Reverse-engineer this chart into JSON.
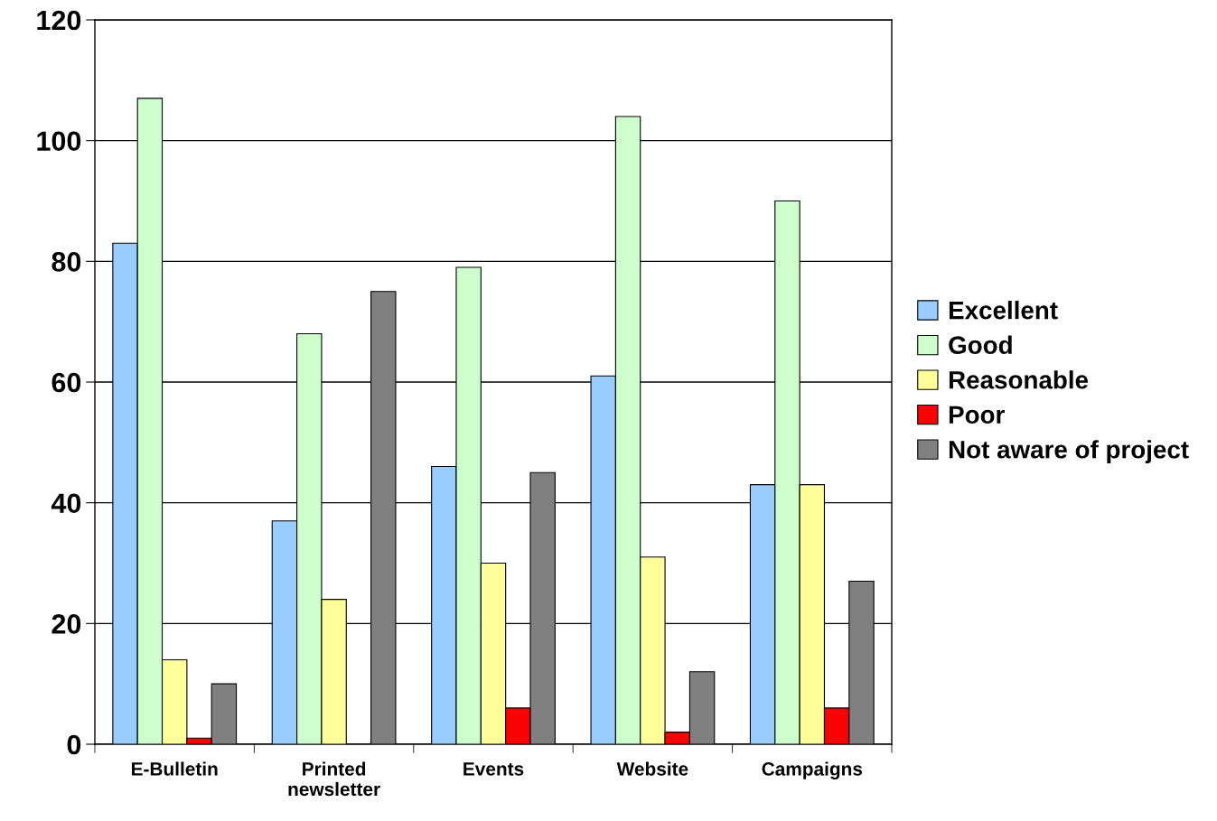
{
  "chart_data": {
    "type": "bar",
    "categories": [
      "E-Bulletin",
      "Printed\nnewsletter",
      "Events",
      "Website",
      "Campaigns"
    ],
    "series": [
      {
        "name": "Excellent",
        "color": "#99ccff",
        "values": [
          83,
          37,
          46,
          61,
          43
        ]
      },
      {
        "name": "Good",
        "color": "#ccffcc",
        "values": [
          107,
          68,
          79,
          104,
          90
        ]
      },
      {
        "name": "Reasonable",
        "color": "#ffff99",
        "values": [
          14,
          24,
          30,
          31,
          43
        ]
      },
      {
        "name": "Poor",
        "color": "#ff0000",
        "values": [
          1,
          null,
          6,
          2,
          6
        ]
      },
      {
        "name": "Not aware of project",
        "color": "#808080",
        "values": [
          10,
          75,
          45,
          12,
          27
        ]
      }
    ],
    "ylim": [
      0,
      120
    ],
    "yticks": [
      0,
      20,
      40,
      60,
      80,
      100,
      120
    ],
    "grid": "y",
    "legend": "right"
  }
}
